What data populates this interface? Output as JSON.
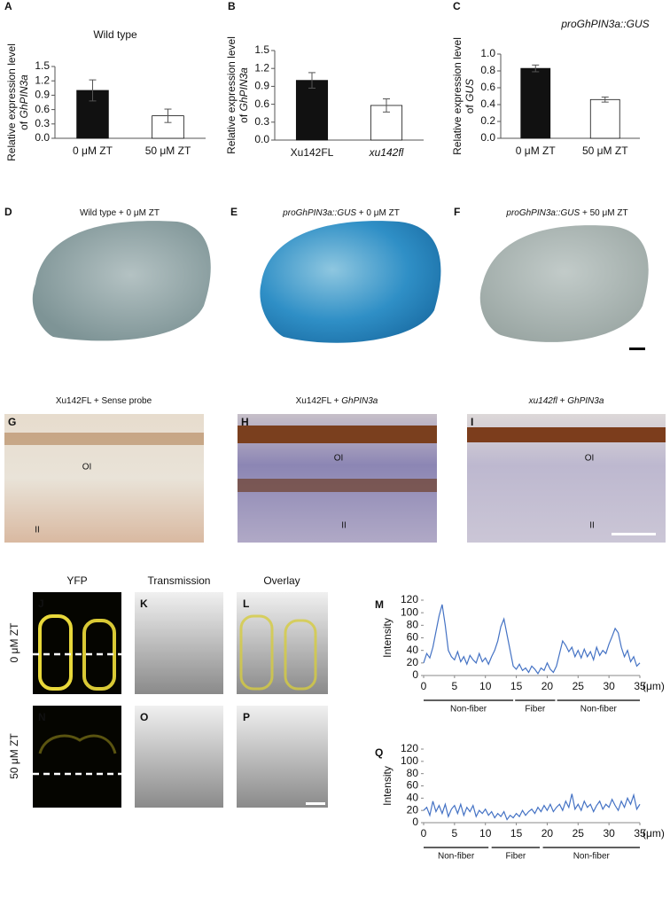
{
  "chart_data": [
    {
      "type": "bar",
      "panel": "A",
      "title": "Wild type",
      "ylabel": [
        "Relative expression level",
        "of",
        "GhPIN3a"
      ],
      "categories": [
        "0 μM ZT",
        "50 μM ZT"
      ],
      "values": [
        1.0,
        0.47
      ],
      "errors": [
        0.22,
        0.14
      ],
      "colors": [
        "#111111",
        "#ffffff"
      ],
      "ylim": [
        0,
        1.5
      ],
      "yticks": [
        {
          "value": 0,
          "label": "0.0"
        },
        0.3,
        0.6,
        0.9,
        1.2,
        1.5
      ]
    },
    {
      "type": "bar",
      "panel": "B",
      "ylabel": [
        "Relative expression level",
        "of",
        "GhPIN3a"
      ],
      "categories": [
        "Xu142FL",
        "xu142fl"
      ],
      "category_italic": [
        false,
        true
      ],
      "values": [
        1.0,
        0.58
      ],
      "errors": [
        0.13,
        0.11
      ],
      "colors": [
        "#111111",
        "#ffffff"
      ],
      "ylim": [
        0,
        1.5
      ],
      "yticks": [
        {
          "value": 0,
          "label": "0.0"
        },
        0.3,
        0.6,
        0.9,
        1.2,
        1.5
      ]
    },
    {
      "type": "bar",
      "panel": "C",
      "title": "proGhPIN3a::GUS",
      "title_italic": true,
      "ylabel": [
        "Relative expression level",
        "of",
        "GUS"
      ],
      "categories": [
        "0 μM ZT",
        "50 μM ZT"
      ],
      "values": [
        0.83,
        0.46
      ],
      "errors": [
        0.04,
        0.03
      ],
      "colors": [
        "#111111",
        "#ffffff"
      ],
      "ylim": [
        0,
        1.0
      ],
      "yticks": [
        {
          "value": 0,
          "label": "0.0"
        },
        0.2,
        0.4,
        0.6,
        0.8,
        {
          "value": 1,
          "label": "1.0"
        }
      ]
    },
    {
      "type": "line",
      "panel": "M",
      "ylabel": "Intensity",
      "xlabel": "(μm)",
      "color": "#4472c4",
      "x": [
        0,
        0.5,
        1,
        1.5,
        2,
        2.5,
        3,
        3.5,
        4,
        4.5,
        5,
        5.5,
        6,
        6.5,
        7,
        7.5,
        8,
        8.5,
        9,
        9.5,
        10,
        10.5,
        11,
        11.5,
        12,
        12.5,
        13,
        13.5,
        14,
        14.5,
        15,
        15.5,
        16,
        16.5,
        17,
        17.5,
        18,
        18.5,
        19,
        19.5,
        20,
        20.5,
        21,
        21.5,
        22,
        22.5,
        23,
        23.5,
        24,
        24.5,
        25,
        25.5,
        26,
        26.5,
        27,
        27.5,
        28,
        28.5,
        29,
        29.5,
        30,
        30.5,
        31,
        31.5,
        32,
        32.5,
        33,
        33.5,
        34,
        34.5,
        35
      ],
      "values": [
        20,
        35,
        28,
        45,
        70,
        95,
        113,
        80,
        40,
        30,
        25,
        38,
        22,
        30,
        18,
        32,
        25,
        20,
        35,
        22,
        28,
        18,
        30,
        40,
        55,
        78,
        90,
        65,
        40,
        15,
        10,
        18,
        8,
        12,
        5,
        15,
        10,
        3,
        12,
        8,
        20,
        10,
        5,
        15,
        35,
        55,
        48,
        38,
        45,
        30,
        40,
        28,
        42,
        30,
        38,
        25,
        45,
        32,
        40,
        35,
        50,
        62,
        75,
        68,
        45,
        30,
        40,
        22,
        30,
        15,
        20
      ],
      "xlim": [
        0,
        35
      ],
      "xticks": [
        0,
        5,
        10,
        15,
        20,
        25,
        30,
        35
      ],
      "ylim": [
        0,
        120
      ],
      "yticks": [
        0,
        20,
        40,
        60,
        80,
        100,
        120
      ],
      "regions": [
        {
          "label": "Non-fiber",
          "range": [
            0,
            14.5
          ]
        },
        {
          "label": "Fiber",
          "range": [
            14.8,
            21.3
          ]
        },
        {
          "label": "Non-fiber",
          "range": [
            21.6,
            35
          ]
        }
      ]
    },
    {
      "type": "line",
      "panel": "Q",
      "ylabel": "Intensity",
      "xlabel": "(μm)",
      "color": "#4472c4",
      "x": [
        0,
        0.5,
        1,
        1.5,
        2,
        2.5,
        3,
        3.5,
        4,
        4.5,
        5,
        5.5,
        6,
        6.5,
        7,
        7.5,
        8,
        8.5,
        9,
        9.5,
        10,
        10.5,
        11,
        11.5,
        12,
        12.5,
        13,
        13.5,
        14,
        14.5,
        15,
        15.5,
        16,
        16.5,
        17,
        17.5,
        18,
        18.5,
        19,
        19.5,
        20,
        20.5,
        21,
        21.5,
        22,
        22.5,
        23,
        23.5,
        24,
        24.5,
        25,
        25.5,
        26,
        26.5,
        27,
        27.5,
        28,
        28.5,
        29,
        29.5,
        30,
        30.5,
        31,
        31.5,
        32,
        32.5,
        33,
        33.5,
        34,
        34.5,
        35
      ],
      "values": [
        20,
        25,
        12,
        35,
        18,
        28,
        15,
        30,
        10,
        22,
        28,
        15,
        30,
        12,
        25,
        18,
        28,
        10,
        20,
        15,
        22,
        12,
        18,
        8,
        15,
        10,
        18,
        5,
        12,
        8,
        15,
        10,
        20,
        12,
        18,
        22,
        15,
        25,
        18,
        28,
        20,
        30,
        18,
        25,
        30,
        20,
        35,
        25,
        47,
        22,
        30,
        20,
        35,
        25,
        30,
        18,
        28,
        35,
        22,
        30,
        25,
        38,
        28,
        20,
        35,
        25,
        40,
        30,
        45,
        22,
        30
      ],
      "xlim": [
        0,
        35
      ],
      "xticks": [
        0,
        5,
        10,
        15,
        20,
        25,
        30,
        35
      ],
      "ylim": [
        0,
        120
      ],
      "yticks": [
        0,
        20,
        40,
        60,
        80,
        100,
        120
      ],
      "regions": [
        {
          "label": "Non-fiber",
          "range": [
            0,
            10.5
          ]
        },
        {
          "label": "Fiber",
          "range": [
            11,
            18.8
          ]
        },
        {
          "label": "Non-fiber",
          "range": [
            19.3,
            35
          ]
        }
      ]
    }
  ],
  "images": {
    "row1": [
      {
        "letter": "D",
        "caption": [
          {
            "text": "Wild type + 0 μM ZT"
          }
        ]
      },
      {
        "letter": "E",
        "caption": [
          {
            "text": "proGhPIN3a::GUS",
            "italic": true
          },
          {
            "text": " + 0 μM ZT"
          }
        ]
      },
      {
        "letter": "F",
        "caption": [
          {
            "text": "proGhPIN3a::GUS",
            "italic": true
          },
          {
            "text": " + 50 μM ZT"
          }
        ]
      }
    ],
    "row2": [
      {
        "letter": "G",
        "caption": [
          {
            "text": "Xu142FL + Sense probe"
          }
        ],
        "layers": [
          "OI",
          "II"
        ]
      },
      {
        "letter": "H",
        "caption": [
          {
            "text": "Xu142FL + "
          },
          {
            "text": "GhPIN3a",
            "italic": true
          }
        ],
        "layers": [
          "OI",
          "II"
        ]
      },
      {
        "letter": "I",
        "caption": [
          {
            "text": "xu142fl",
            "italic": true
          },
          {
            "text": " + "
          },
          {
            "text": "GhPIN3a",
            "italic": true
          }
        ],
        "layers": [
          "OI",
          "II"
        ]
      }
    ],
    "fluorescence": {
      "columns": [
        "YFP",
        "Transmission",
        "Overlay"
      ],
      "rows": [
        {
          "label": "0 μM ZT",
          "letters": [
            "J",
            "K",
            "L"
          ]
        },
        {
          "label": "50 μM ZT",
          "letters": [
            "N",
            "O",
            "P"
          ]
        }
      ]
    }
  }
}
